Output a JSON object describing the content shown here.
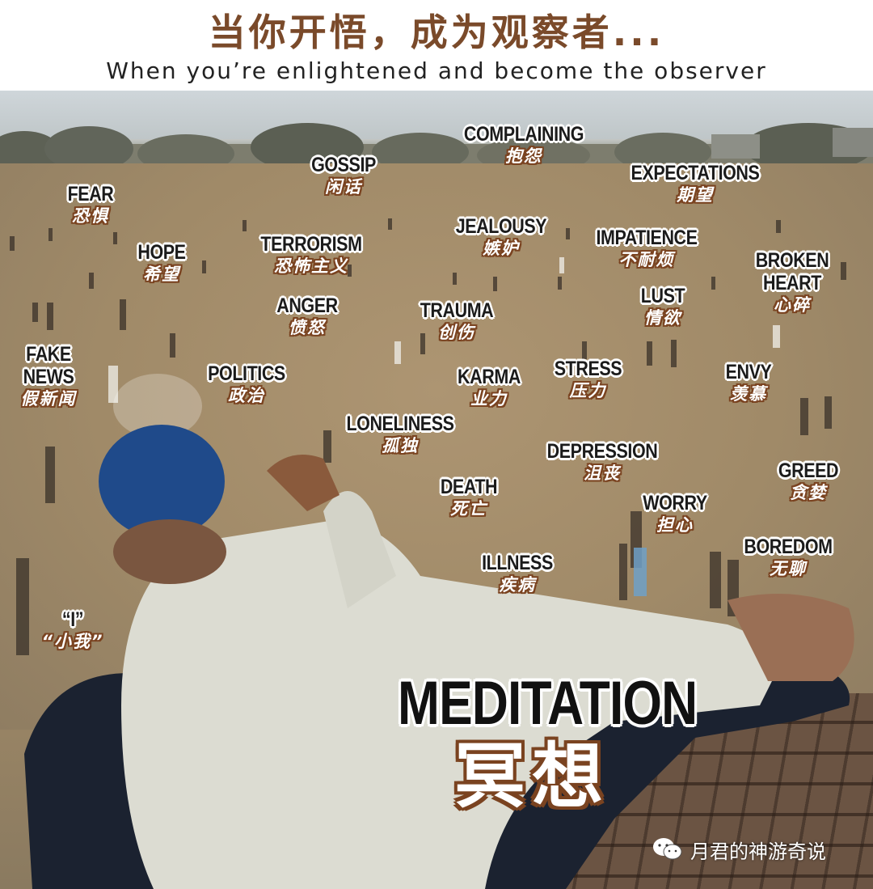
{
  "header": {
    "title_cn": "当你开悟，成为观察者...",
    "title_en": "When you’re enlightened and become the observer"
  },
  "labels": [
    {
      "id": "complaining",
      "en": "COMPLAINING",
      "cn": "抱怨"
    },
    {
      "id": "gossip",
      "en": "GOSSIP",
      "cn": "闲话"
    },
    {
      "id": "expectations",
      "en": "EXPECTATIONS",
      "cn": "期望"
    },
    {
      "id": "fear",
      "en": "FEAR",
      "cn": "恐惧"
    },
    {
      "id": "jealousy",
      "en": "JEALOUSY",
      "cn": "嫉妒"
    },
    {
      "id": "impatience",
      "en": "IMPATIENCE",
      "cn": "不耐烦"
    },
    {
      "id": "hope",
      "en": "HOPE",
      "cn": "希望"
    },
    {
      "id": "terrorism",
      "en": "TERRORISM",
      "cn": "恐怖主义"
    },
    {
      "id": "broken-heart",
      "en": "BROKEN",
      "en2": "HEART",
      "cn": "心碎"
    },
    {
      "id": "lust",
      "en": "LUST",
      "cn": "情欲"
    },
    {
      "id": "anger",
      "en": "ANGER",
      "cn": "愤怒"
    },
    {
      "id": "trauma",
      "en": "TRAUMA",
      "cn": "创伤"
    },
    {
      "id": "fake-news",
      "en": "FAKE",
      "en2": "NEWS",
      "cn": "假新闻"
    },
    {
      "id": "politics",
      "en": "POLITICS",
      "cn": "政治"
    },
    {
      "id": "karma",
      "en": "KARMA",
      "cn": "业力"
    },
    {
      "id": "stress",
      "en": "STRESS",
      "cn": "压力"
    },
    {
      "id": "envy",
      "en": "ENVY",
      "cn": "羡慕"
    },
    {
      "id": "loneliness",
      "en": "LONELINESS",
      "cn": "孤独"
    },
    {
      "id": "depression",
      "en": "DEPRESSION",
      "cn": "沮丧"
    },
    {
      "id": "greed",
      "en": "GREED",
      "cn": "贪婪"
    },
    {
      "id": "death",
      "en": "DEATH",
      "cn": "死亡"
    },
    {
      "id": "worry",
      "en": "WORRY",
      "cn": "担心"
    },
    {
      "id": "boredom",
      "en": "BOREDOM",
      "cn": "无聊"
    },
    {
      "id": "illness",
      "en": "ILLNESS",
      "cn": "疾病"
    },
    {
      "id": "i",
      "en": "“I”",
      "cn": "“小我”"
    }
  ],
  "meditation": {
    "en": "MEDITATION",
    "cn": "冥想"
  },
  "watermark": {
    "text": "月君的神游奇说",
    "icon": "wechat-icon"
  },
  "colors": {
    "title_cn": "#7a4a2a",
    "cn_outline": "#7a4320",
    "field": "#a38c68"
  }
}
